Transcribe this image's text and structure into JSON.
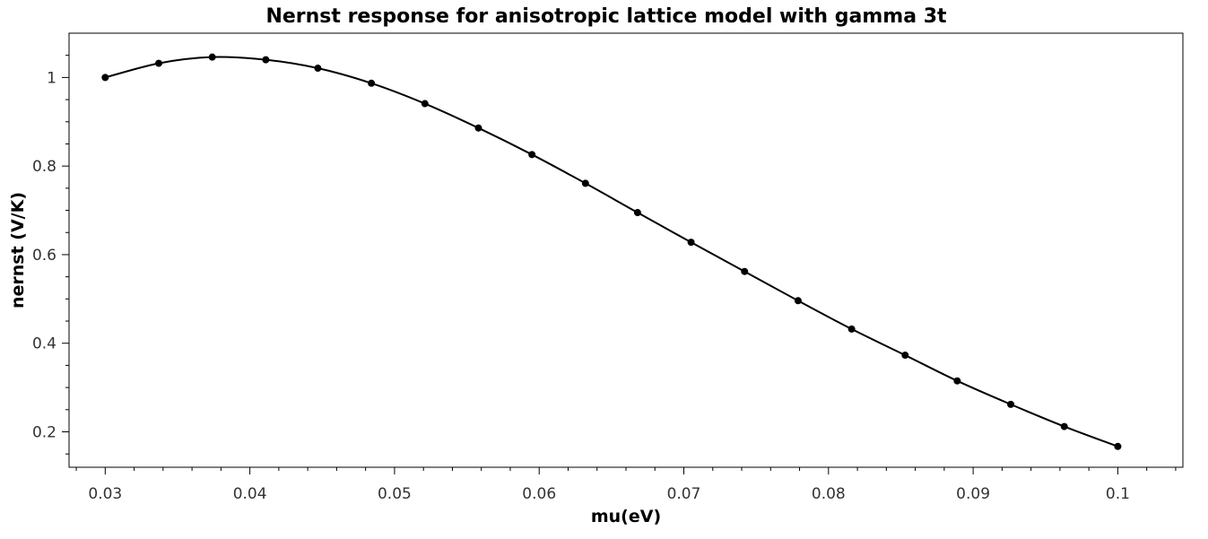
{
  "chart_data": {
    "type": "line",
    "title": "Nernst response for anisotropic lattice model with gamma 3t",
    "xlabel": "mu(eV)",
    "ylabel": "nernst (V/K)",
    "xlim": [
      0.0275,
      0.1045
    ],
    "ylim": [
      0.12,
      1.1
    ],
    "xticks": [
      0.03,
      0.04,
      0.05,
      0.06,
      0.07,
      0.08,
      0.09,
      0.1
    ],
    "xtick_labels": [
      "0.03",
      "0.04",
      "0.05",
      "0.06",
      "0.07",
      "0.08",
      "0.09",
      "0.1"
    ],
    "yticks": [
      0.2,
      0.4,
      0.6,
      0.8,
      1.0
    ],
    "ytick_labels": [
      "0.2",
      "0.4",
      "0.6",
      "0.8",
      "1"
    ],
    "grid": false,
    "legend": "none",
    "series": [
      {
        "color": "#000000",
        "marker": "circle",
        "x": [
          0.03,
          0.0337,
          0.0374,
          0.0411,
          0.0447,
          0.0484,
          0.0521,
          0.0558,
          0.0595,
          0.0632,
          0.0668,
          0.0705,
          0.0742,
          0.0779,
          0.0816,
          0.0853,
          0.0889,
          0.0926,
          0.0963,
          0.1
        ],
        "y": [
          1.0,
          1.032,
          1.046,
          1.04,
          1.021,
          0.987,
          0.941,
          0.886,
          0.826,
          0.761,
          0.695,
          0.628,
          0.562,
          0.496,
          0.432,
          0.373,
          0.315,
          0.262,
          0.212,
          0.167
        ]
      }
    ]
  }
}
